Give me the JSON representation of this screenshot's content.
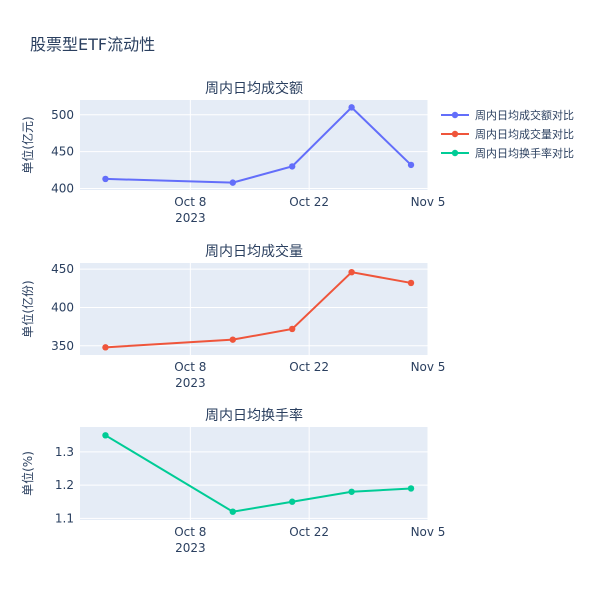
{
  "title": "股票型ETF流动性",
  "chart_data": [
    {
      "type": "line",
      "title": "周内日均成交额",
      "ylabel": "单位(亿元)",
      "x": [
        "2023-09-28",
        "2023-10-13",
        "2023-10-20",
        "2023-10-27",
        "2023-11-03"
      ],
      "series": [
        {
          "name": "周内日均成交额对比",
          "values": [
            413,
            408,
            430,
            510,
            432
          ]
        }
      ],
      "xlim": [
        "2023-09-25",
        "2023-11-05"
      ],
      "ylim": [
        398,
        520
      ],
      "yticks": [
        400,
        450,
        500
      ],
      "xticks": [
        "2023-10-08",
        "2023-10-22",
        "2023-11-05"
      ],
      "xtick_labels": [
        "Oct 8",
        "Oct 22",
        "Nov 5"
      ],
      "xyear": "2023",
      "color": "#636efa"
    },
    {
      "type": "line",
      "title": "周内日均成交量",
      "ylabel": "单位(亿份)",
      "x": [
        "2023-09-28",
        "2023-10-13",
        "2023-10-20",
        "2023-10-27",
        "2023-11-03"
      ],
      "series": [
        {
          "name": "周内日均成交量对比",
          "values": [
            348,
            358,
            372,
            446,
            432
          ]
        }
      ],
      "xlim": [
        "2023-09-25",
        "2023-11-05"
      ],
      "ylim": [
        338,
        458
      ],
      "yticks": [
        350,
        400,
        450
      ],
      "xticks": [
        "2023-10-08",
        "2023-10-22",
        "2023-11-05"
      ],
      "xtick_labels": [
        "Oct 8",
        "Oct 22",
        "Nov 5"
      ],
      "xyear": "2023",
      "color": "#ef553b"
    },
    {
      "type": "line",
      "title": "周内日均换手率",
      "ylabel": "单位(%)",
      "x": [
        "2023-09-28",
        "2023-10-13",
        "2023-10-20",
        "2023-10-27",
        "2023-11-03"
      ],
      "series": [
        {
          "name": "周内日均换手率对比",
          "values": [
            1.35,
            1.12,
            1.15,
            1.18,
            1.19
          ]
        }
      ],
      "xlim": [
        "2023-09-25",
        "2023-11-05"
      ],
      "ylim": [
        1.095,
        1.375
      ],
      "yticks": [
        1.1,
        1.2,
        1.3
      ],
      "xticks": [
        "2023-10-08",
        "2023-10-22",
        "2023-11-05"
      ],
      "xtick_labels": [
        "Oct 8",
        "Oct 22",
        "Nov 5"
      ],
      "xyear": "2023",
      "color": "#00cc96"
    }
  ],
  "legend": {
    "placement": "top-right",
    "items": [
      {
        "label": "周内日均成交额对比",
        "color": "#636efa"
      },
      {
        "label": "周内日均成交量对比",
        "color": "#ef553b"
      },
      {
        "label": "周内日均换手率对比",
        "color": "#00cc96"
      }
    ]
  },
  "colors": {
    "plot_bg": "#e5ecf6",
    "grid": "#ffffff",
    "text": "#2a3f5f"
  }
}
